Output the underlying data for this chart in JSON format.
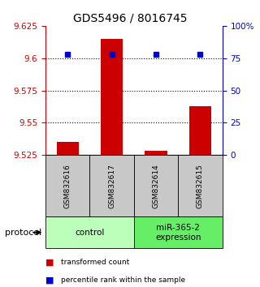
{
  "title": "GDS5496 / 8016745",
  "samples": [
    "GSM832616",
    "GSM832617",
    "GSM832614",
    "GSM832615"
  ],
  "red_values": [
    9.535,
    9.615,
    9.528,
    9.563
  ],
  "blue_values": [
    78,
    78,
    78,
    78
  ],
  "baseline": 9.525,
  "ylim": [
    9.525,
    9.625
  ],
  "y_ticks": [
    9.525,
    9.55,
    9.575,
    9.6,
    9.625
  ],
  "y2_ticks": [
    0,
    25,
    50,
    75,
    100
  ],
  "dotted_lines": [
    9.6,
    9.575,
    9.55
  ],
  "groups": [
    {
      "label": "control",
      "start": 0,
      "end": 2,
      "color": "#bbffbb"
    },
    {
      "label": "miR-365-2\nexpression",
      "start": 2,
      "end": 4,
      "color": "#66ee66"
    }
  ],
  "bar_color": "#cc0000",
  "dot_color": "#0000cc",
  "bar_width": 0.5,
  "background_color": "#ffffff",
  "left_label_color": "#cc0000",
  "right_label_color": "#0000cc",
  "legend_red": "transformed count",
  "legend_blue": "percentile rank within the sample",
  "protocol_label": "protocol",
  "title_fontsize": 10,
  "tick_fontsize": 7.5,
  "sample_fontsize": 6.5,
  "group_fontsize": 7.5
}
